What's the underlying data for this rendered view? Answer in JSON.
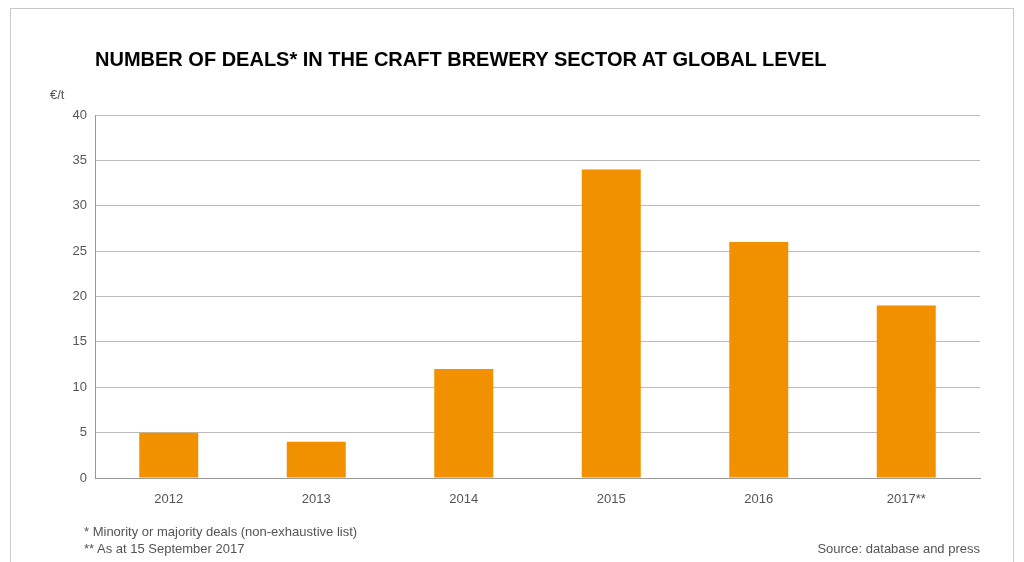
{
  "chart_data": {
    "type": "bar",
    "title": "NUMBER OF DEALS* IN THE CRAFT BREWERY SECTOR AT GLOBAL LEVEL",
    "ylabel": "€/t",
    "categories": [
      "2012",
      "2013",
      "2014",
      "2015",
      "2016",
      "2017**"
    ],
    "values": [
      5,
      4,
      12,
      34,
      26,
      19
    ],
    "color": "#f29100",
    "ylim": [
      0,
      40
    ],
    "yticks": [
      0,
      5,
      10,
      15,
      20,
      25,
      30,
      35,
      40
    ],
    "grid": "y",
    "annotations": [
      "* Minority or majority deals (non-exhaustive list)",
      "** As at 15 September 2017",
      "Source: database and press"
    ]
  }
}
